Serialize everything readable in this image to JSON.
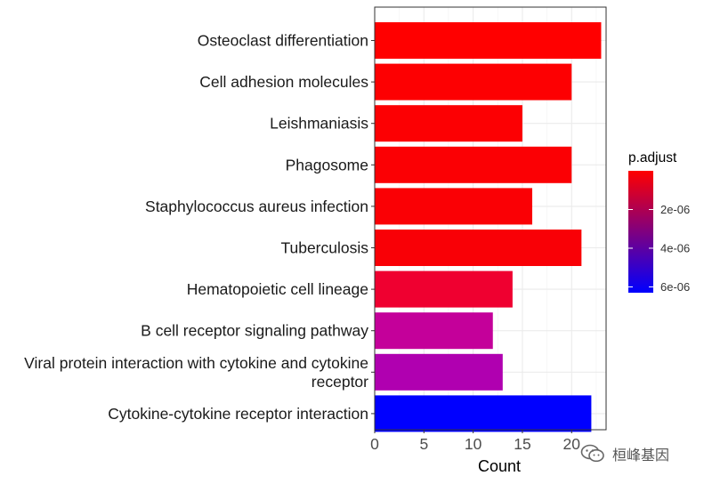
{
  "chart_data": {
    "type": "bar",
    "orientation": "horizontal",
    "title": "",
    "xlabel": "Count",
    "ylabel": "",
    "xlim": [
      0,
      23.5
    ],
    "xticks": [
      0,
      5,
      10,
      15,
      20
    ],
    "categories": [
      [
        "Osteoclast differentiation"
      ],
      [
        "Cell adhesion molecules"
      ],
      [
        "Leishmaniasis"
      ],
      [
        "Phagosome"
      ],
      [
        "Staphylococcus aureus infection"
      ],
      [
        "Tuberculosis"
      ],
      [
        "Hematopoietic cell lineage"
      ],
      [
        "B cell receptor signaling pathway"
      ],
      [
        "Viral protein interaction with cytokine and cytokine",
        "receptor"
      ],
      [
        "Cytokine-cytokine receptor interaction"
      ]
    ],
    "values": [
      23,
      20,
      15,
      20,
      16,
      21,
      14,
      12,
      13,
      22
    ],
    "color_values": [
      3e-08,
      8e-08,
      1e-07,
      1.5e-07,
      2e-07,
      2.5e-07,
      8e-07,
      3.8e-06,
      4e-06,
      6.3e-06
    ],
    "colors": [
      "#ff0000",
      "#fd0002",
      "#fc0003",
      "#fb0004",
      "#fa0005",
      "#f90006",
      "#ef0030",
      "#c4009a",
      "#b000b0",
      "#0000ff"
    ],
    "legend": {
      "title": "p.adjust",
      "placement": "right",
      "low_color": "#ff0000",
      "high_color": "#0000ff",
      "range": [
        0,
        6.3e-06
      ],
      "ticks": [
        {
          "value": 2e-06,
          "label": "2e-06"
        },
        {
          "value": 4e-06,
          "label": "4e-06"
        },
        {
          "value": 6e-06,
          "label": "6e-06"
        }
      ]
    },
    "grid": true
  },
  "watermark": {
    "text": "桓峰基因",
    "icon": "wechat-icon"
  }
}
